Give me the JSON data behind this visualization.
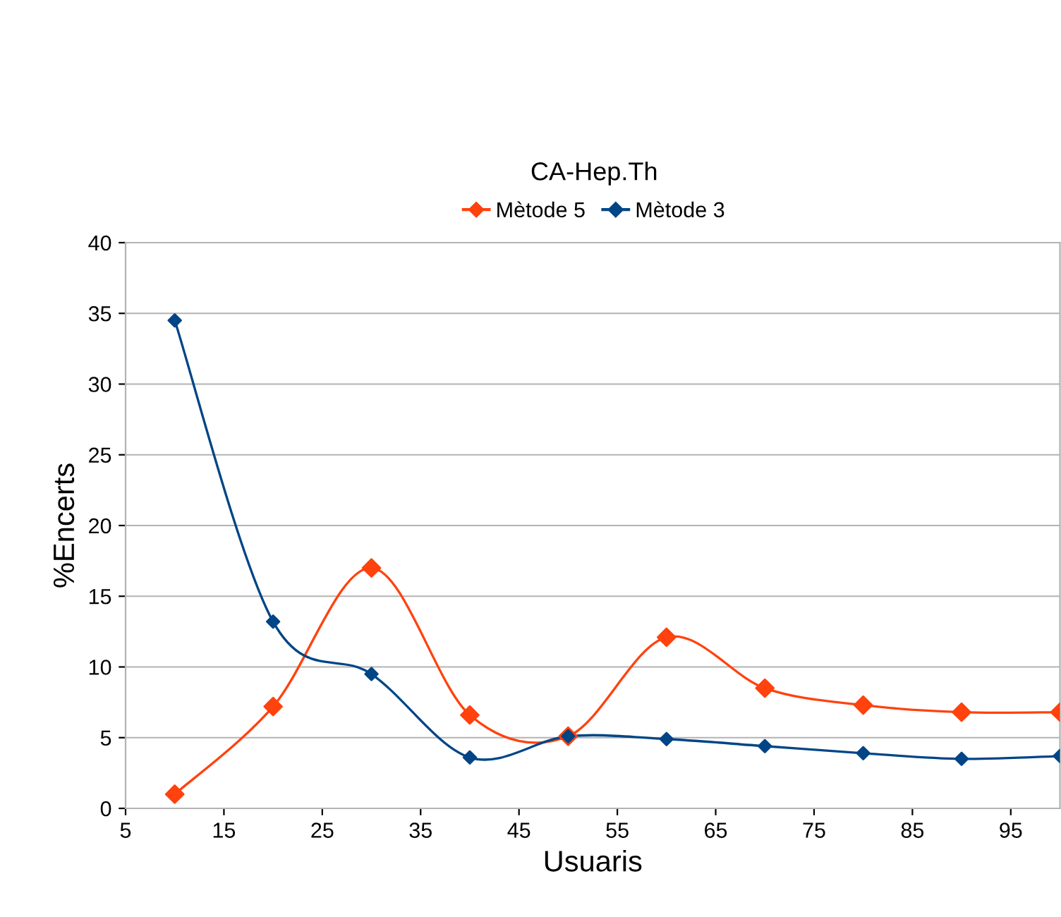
{
  "chart_data": {
    "type": "line",
    "title": "CA-Hep.Th",
    "xlabel": "Usuaris",
    "ylabel": "%Encerts",
    "x": [
      10,
      20,
      30,
      40,
      50,
      60,
      70,
      80,
      90,
      100
    ],
    "series": [
      {
        "name": "Mètode 5",
        "color": "#ff420e",
        "values": [
          1.0,
          7.2,
          17.0,
          6.6,
          5.1,
          12.1,
          8.5,
          7.3,
          6.8,
          6.8
        ]
      },
      {
        "name": "Mètode 3",
        "color": "#004586",
        "values": [
          34.5,
          13.2,
          9.5,
          3.6,
          5.1,
          4.9,
          4.4,
          3.9,
          3.5,
          3.7
        ]
      }
    ],
    "xlim": [
      5,
      100
    ],
    "xticks": [
      5,
      15,
      25,
      35,
      45,
      55,
      65,
      75,
      85,
      95
    ],
    "ylim": [
      0,
      40
    ],
    "yticks": [
      0,
      5,
      10,
      15,
      20,
      25,
      30,
      35,
      40
    ],
    "grid": "y",
    "legend": "top",
    "marker": "diamond",
    "line_style": "solid"
  }
}
